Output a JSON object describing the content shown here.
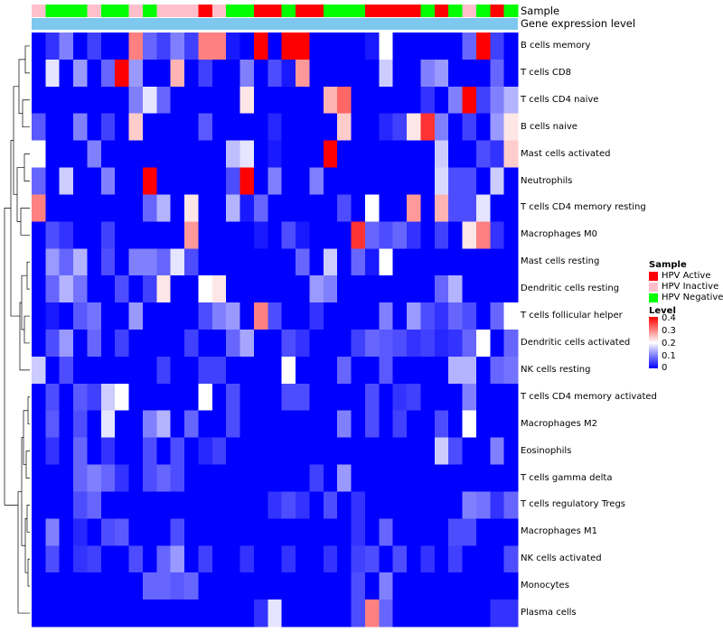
{
  "colors": {
    "low": "#0000ff",
    "mid": "#ffffff",
    "high": "#ff0000",
    "hpv_active": "#ff0000",
    "hpv_inactive": "#ffc0cb",
    "hpv_negative": "#00ff00",
    "gene_expr": "#7ec8ef"
  },
  "annotations": {
    "sample_label": "Sample",
    "gene_label": "Gene expression level"
  },
  "legend": {
    "sample_title": "Sample",
    "sample_items": [
      {
        "key": "A",
        "label": "HPV Active",
        "color": "#ff0000"
      },
      {
        "key": "I",
        "label": "HPV Inactive",
        "color": "#ffc0cb"
      },
      {
        "key": "N",
        "label": "HPV Negative",
        "color": "#00ff00"
      }
    ],
    "level_title": "Level",
    "level_ticks": [
      "0.4",
      "0.3",
      "0.2",
      "0.1",
      "0"
    ]
  },
  "chart_data": {
    "type": "heatmap",
    "color_scale": {
      "min": 0,
      "max": 0.4,
      "mid": 0.2
    },
    "sample_groups": [
      "I",
      "N",
      "N",
      "N",
      "I",
      "N",
      "N",
      "I",
      "N",
      "I",
      "I",
      "I",
      "A",
      "I",
      "N",
      "N",
      "A",
      "A",
      "N",
      "A",
      "A",
      "N",
      "N",
      "N",
      "A",
      "A",
      "A",
      "A",
      "N",
      "A",
      "N",
      "I",
      "N",
      "A",
      "N"
    ],
    "rows": [
      {
        "name": "B cells memory",
        "values": [
          0.0,
          0.04,
          0.1,
          0.0,
          0.05,
          0.0,
          0.0,
          0.3,
          0.08,
          0.05,
          0.1,
          0.05,
          0.3,
          0.3,
          0.02,
          0.0,
          0.4,
          0.0,
          0.4,
          0.4,
          0.0,
          0.0,
          0.0,
          0.0,
          0.02,
          0.2,
          0.0,
          0.0,
          0.0,
          0.0,
          0.0,
          0.08,
          0.4,
          0.05,
          0.0
        ]
      },
      {
        "name": "T cells CD8",
        "values": [
          0.0,
          0.18,
          0.0,
          0.12,
          0.0,
          0.08,
          0.4,
          0.12,
          0.0,
          0.0,
          0.26,
          0.0,
          0.05,
          0.0,
          0.0,
          0.1,
          0.0,
          0.06,
          0.02,
          0.28,
          0.0,
          0.0,
          0.0,
          0.0,
          0.0,
          0.16,
          0.0,
          0.0,
          0.1,
          0.12,
          0.0,
          0.0,
          0.0,
          0.08,
          0.0
        ]
      },
      {
        "name": "T cells CD4 naive",
        "values": [
          0.0,
          0.0,
          0.0,
          0.0,
          0.0,
          0.0,
          0.0,
          0.1,
          0.18,
          0.08,
          0.0,
          0.0,
          0.0,
          0.0,
          0.0,
          0.22,
          0.0,
          0.0,
          0.0,
          0.0,
          0.0,
          0.26,
          0.32,
          0.0,
          0.0,
          0.0,
          0.0,
          0.0,
          0.04,
          0.0,
          0.1,
          0.4,
          0.05,
          0.1,
          0.14
        ]
      },
      {
        "name": "B cells naive",
        "values": [
          0.07,
          0.0,
          0.0,
          0.1,
          0.0,
          0.05,
          0.0,
          0.24,
          0.0,
          0.0,
          0.0,
          0.0,
          0.07,
          0.0,
          0.0,
          0.0,
          0.0,
          0.03,
          0.0,
          0.0,
          0.0,
          0.0,
          0.24,
          0.0,
          0.0,
          0.03,
          0.05,
          0.22,
          0.36,
          0.1,
          0.0,
          0.05,
          0.0,
          0.12,
          0.22
        ]
      },
      {
        "name": "Mast cells activated",
        "values": [
          0.2,
          0.0,
          0.0,
          0.0,
          0.1,
          0.0,
          0.0,
          0.0,
          0.0,
          0.0,
          0.0,
          0.0,
          0.0,
          0.0,
          0.15,
          0.18,
          0.0,
          0.02,
          0.0,
          0.0,
          0.0,
          0.4,
          0.0,
          0.0,
          0.0,
          0.0,
          0.0,
          0.0,
          0.0,
          0.16,
          0.0,
          0.0,
          0.06,
          0.04,
          0.24
        ]
      },
      {
        "name": "Neutrophils",
        "values": [
          0.08,
          0.0,
          0.16,
          0.0,
          0.0,
          0.1,
          0.0,
          0.0,
          0.4,
          0.0,
          0.0,
          0.0,
          0.0,
          0.0,
          0.06,
          0.4,
          0.0,
          0.1,
          0.0,
          0.0,
          0.1,
          0.0,
          0.0,
          0.0,
          0.0,
          0.0,
          0.0,
          0.0,
          0.0,
          0.17,
          0.06,
          0.06,
          0.0,
          0.16,
          0.0
        ]
      },
      {
        "name": "T cells CD4 memory resting",
        "values": [
          0.3,
          0.0,
          0.0,
          0.0,
          0.0,
          0.0,
          0.0,
          0.0,
          0.08,
          0.14,
          0.0,
          0.22,
          0.0,
          0.0,
          0.14,
          0.02,
          0.08,
          0.0,
          0.0,
          0.0,
          0.0,
          0.0,
          0.06,
          0.0,
          0.2,
          0.0,
          0.0,
          0.28,
          0.0,
          0.26,
          0.06,
          0.06,
          0.18,
          0.0,
          0.0
        ]
      },
      {
        "name": "Macrophages M0",
        "values": [
          0.0,
          0.06,
          0.04,
          0.0,
          0.0,
          0.05,
          0.0,
          0.0,
          0.0,
          0.0,
          0.0,
          0.28,
          0.0,
          0.0,
          0.0,
          0.0,
          0.02,
          0.0,
          0.06,
          0.02,
          0.0,
          0.0,
          0.0,
          0.36,
          0.08,
          0.06,
          0.08,
          0.04,
          0.0,
          0.05,
          0.0,
          0.22,
          0.3,
          0.04,
          0.0
        ]
      },
      {
        "name": "Mast cells resting",
        "values": [
          0.0,
          0.12,
          0.08,
          0.14,
          0.0,
          0.06,
          0.0,
          0.1,
          0.1,
          0.08,
          0.18,
          0.06,
          0.0,
          0.0,
          0.0,
          0.0,
          0.0,
          0.0,
          0.0,
          0.08,
          0.0,
          0.16,
          0.0,
          0.08,
          0.02,
          0.2,
          0.0,
          0.0,
          0.0,
          0.0,
          0.0,
          0.0,
          0.0,
          0.0,
          0.0
        ]
      },
      {
        "name": "Dendritic cells resting",
        "values": [
          0.0,
          0.08,
          0.14,
          0.09,
          0.0,
          0.0,
          0.06,
          0.0,
          0.05,
          0.22,
          0.0,
          0.0,
          0.2,
          0.22,
          0.0,
          0.0,
          0.0,
          0.0,
          0.0,
          0.0,
          0.12,
          0.1,
          0.0,
          0.0,
          0.0,
          0.0,
          0.0,
          0.0,
          0.0,
          0.08,
          0.14,
          0.0,
          0.0,
          0.0,
          0.0
        ]
      },
      {
        "name": "T cells follicular helper",
        "values": [
          0.0,
          0.02,
          0.0,
          0.07,
          0.09,
          0.0,
          0.0,
          0.12,
          0.0,
          0.0,
          0.0,
          0.0,
          0.06,
          0.1,
          0.12,
          0.0,
          0.3,
          0.06,
          0.0,
          0.0,
          0.04,
          0.0,
          0.0,
          0.0,
          0.0,
          0.1,
          0.0,
          0.12,
          0.06,
          0.04,
          0.08,
          0.06,
          0.0,
          0.08,
          0.2
        ]
      },
      {
        "name": "Dendritic cells activated",
        "values": [
          0.0,
          0.06,
          0.12,
          0.0,
          0.08,
          0.0,
          0.05,
          0.0,
          0.0,
          0.0,
          0.0,
          0.05,
          0.0,
          0.0,
          0.08,
          0.13,
          0.0,
          0.0,
          0.06,
          0.04,
          0.0,
          0.0,
          0.0,
          0.05,
          0.08,
          0.07,
          0.06,
          0.04,
          0.05,
          0.03,
          0.04,
          0.08,
          0.2,
          0.0,
          0.08
        ]
      },
      {
        "name": "NK cells resting",
        "values": [
          0.16,
          0.0,
          0.06,
          0.0,
          0.0,
          0.0,
          0.0,
          0.0,
          0.0,
          0.05,
          0.0,
          0.0,
          0.05,
          0.05,
          0.0,
          0.0,
          0.0,
          0.0,
          0.2,
          0.0,
          0.0,
          0.0,
          0.08,
          0.0,
          0.0,
          0.07,
          0.0,
          0.0,
          0.0,
          0.0,
          0.14,
          0.14,
          0.0,
          0.08,
          0.09
        ]
      },
      {
        "name": "T cells CD4 memory activated",
        "values": [
          0.0,
          0.06,
          0.0,
          0.07,
          0.05,
          0.16,
          0.2,
          0.0,
          0.0,
          0.0,
          0.0,
          0.0,
          0.2,
          0.0,
          0.06,
          0.0,
          0.0,
          0.0,
          0.06,
          0.06,
          0.0,
          0.0,
          0.0,
          0.0,
          0.06,
          0.0,
          0.04,
          0.05,
          0.0,
          0.0,
          0.0,
          0.1,
          0.0,
          0.0,
          0.0
        ]
      },
      {
        "name": "Macrophages M2",
        "values": [
          0.0,
          0.07,
          0.0,
          0.06,
          0.0,
          0.18,
          0.0,
          0.0,
          0.1,
          0.14,
          0.0,
          0.08,
          0.0,
          0.0,
          0.06,
          0.0,
          0.0,
          0.0,
          0.0,
          0.0,
          0.0,
          0.0,
          0.1,
          0.0,
          0.06,
          0.0,
          0.05,
          0.0,
          0.0,
          0.06,
          0.0,
          0.2,
          0.0,
          0.0,
          0.0
        ]
      },
      {
        "name": "Eosinophils",
        "values": [
          0.0,
          0.04,
          0.0,
          0.08,
          0.0,
          0.04,
          0.0,
          0.0,
          0.06,
          0.0,
          0.06,
          0.0,
          0.03,
          0.05,
          0.0,
          0.0,
          0.0,
          0.0,
          0.0,
          0.0,
          0.0,
          0.0,
          0.0,
          0.0,
          0.0,
          0.0,
          0.0,
          0.0,
          0.0,
          0.16,
          0.06,
          0.0,
          0.0,
          0.1,
          0.0
        ]
      },
      {
        "name": "T cells gamma delta",
        "values": [
          0.0,
          0.0,
          0.0,
          0.08,
          0.1,
          0.08,
          0.04,
          0.0,
          0.06,
          0.08,
          0.06,
          0.0,
          0.0,
          0.0,
          0.0,
          0.0,
          0.0,
          0.0,
          0.0,
          0.0,
          0.05,
          0.0,
          0.12,
          0.0,
          0.0,
          0.0,
          0.0,
          0.0,
          0.0,
          0.0,
          0.0,
          0.0,
          0.0,
          0.0,
          0.0
        ]
      },
      {
        "name": "T cells regulatory  Tregs",
        "values": [
          0.0,
          0.0,
          0.0,
          0.06,
          0.08,
          0.0,
          0.0,
          0.0,
          0.0,
          0.0,
          0.0,
          0.0,
          0.0,
          0.0,
          0.0,
          0.0,
          0.0,
          0.04,
          0.06,
          0.04,
          0.0,
          0.06,
          0.0,
          0.04,
          0.0,
          0.0,
          0.0,
          0.0,
          0.0,
          0.0,
          0.0,
          0.1,
          0.09,
          0.04,
          0.08
        ]
      },
      {
        "name": "Macrophages M1",
        "values": [
          0.0,
          0.1,
          0.0,
          0.03,
          0.0,
          0.06,
          0.07,
          0.0,
          0.0,
          0.0,
          0.06,
          0.0,
          0.0,
          0.0,
          0.0,
          0.0,
          0.0,
          0.0,
          0.0,
          0.0,
          0.0,
          0.0,
          0.0,
          0.04,
          0.0,
          0.08,
          0.0,
          0.0,
          0.0,
          0.0,
          0.06,
          0.06,
          0.0,
          0.0,
          0.0
        ]
      },
      {
        "name": "NK cells activated",
        "values": [
          0.0,
          0.06,
          0.0,
          0.04,
          0.05,
          0.0,
          0.0,
          0.06,
          0.0,
          0.08,
          0.12,
          0.0,
          0.05,
          0.0,
          0.0,
          0.04,
          0.0,
          0.0,
          0.04,
          0.0,
          0.0,
          0.04,
          0.0,
          0.05,
          0.06,
          0.0,
          0.06,
          0.0,
          0.04,
          0.0,
          0.05,
          0.0,
          0.0,
          0.0,
          0.06
        ]
      },
      {
        "name": "Monocytes",
        "values": [
          0.0,
          0.0,
          0.0,
          0.0,
          0.0,
          0.0,
          0.0,
          0.0,
          0.08,
          0.08,
          0.07,
          0.08,
          0.0,
          0.0,
          0.0,
          0.0,
          0.0,
          0.0,
          0.0,
          0.0,
          0.0,
          0.0,
          0.0,
          0.06,
          0.0,
          0.1,
          0.0,
          0.0,
          0.0,
          0.0,
          0.0,
          0.0,
          0.0,
          0.0,
          0.0
        ]
      },
      {
        "name": "Plasma cells",
        "values": [
          0.0,
          0.0,
          0.0,
          0.0,
          0.0,
          0.0,
          0.0,
          0.0,
          0.0,
          0.0,
          0.0,
          0.0,
          0.0,
          0.0,
          0.0,
          0.0,
          0.04,
          0.18,
          0.0,
          0.0,
          0.0,
          0.0,
          0.0,
          0.06,
          0.3,
          0.08,
          0.0,
          0.0,
          0.0,
          0.0,
          0.0,
          0.0,
          0.0,
          0.04,
          0.04
        ]
      }
    ]
  }
}
